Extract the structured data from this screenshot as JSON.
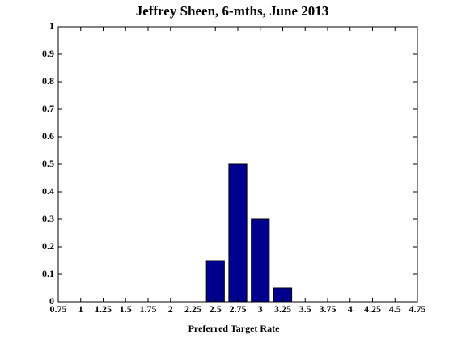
{
  "chart_data": {
    "type": "bar",
    "title": "Jeffrey Sheen, 6-mths, June 2013",
    "x_label": "Preferred Target Rate",
    "x": [
      2.5,
      2.75,
      3,
      3.25
    ],
    "values": [
      0.15,
      0.5,
      0.3,
      0.05
    ],
    "color": "#00008f",
    "xlim": [
      0.75,
      4.75
    ],
    "xticks": [
      0.75,
      1,
      1.25,
      1.5,
      1.75,
      2,
      2.25,
      2.5,
      2.75,
      3,
      3.25,
      3.5,
      3.75,
      4,
      4.25,
      4.5,
      4.75
    ],
    "ylim": [
      0,
      1
    ],
    "yticks": [
      0,
      0.1,
      0.2,
      0.3,
      0.4,
      0.5,
      0.6,
      0.7,
      0.8,
      0.9,
      1
    ]
  }
}
